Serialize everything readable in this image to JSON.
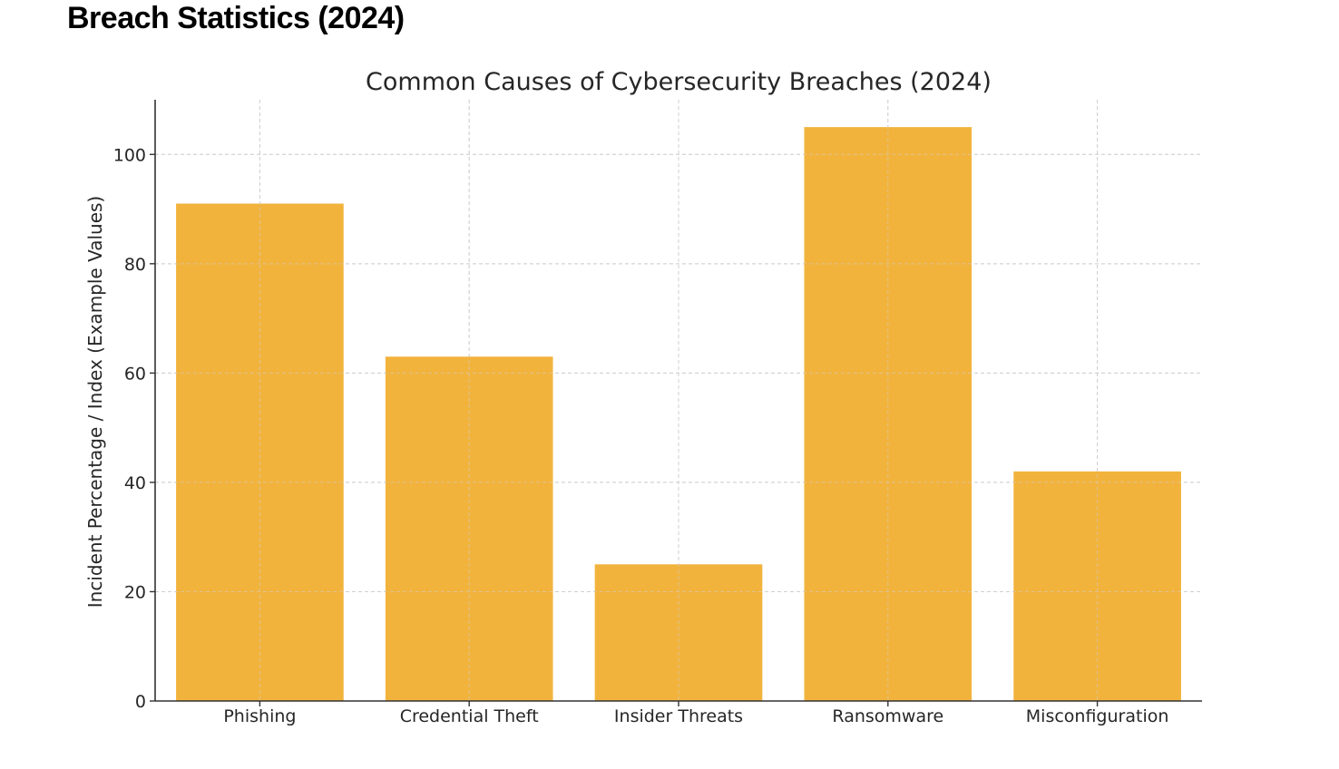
{
  "page": {
    "heading": "Breach Statistics (2024)"
  },
  "chart_data": {
    "type": "bar",
    "title": "Common Causes of Cybersecurity Breaches (2024)",
    "xlabel": "",
    "ylabel": "Incident Percentage / Index (Example Values)",
    "categories": [
      "Phishing",
      "Credential Theft",
      "Insider Threats",
      "Ransomware",
      "Misconfiguration"
    ],
    "values": [
      91,
      63,
      25,
      105,
      42
    ],
    "ylim": [
      0,
      110
    ],
    "yticks": [
      0,
      20,
      40,
      60,
      80,
      100
    ],
    "grid": true,
    "bar_color": "#f2b33d"
  }
}
